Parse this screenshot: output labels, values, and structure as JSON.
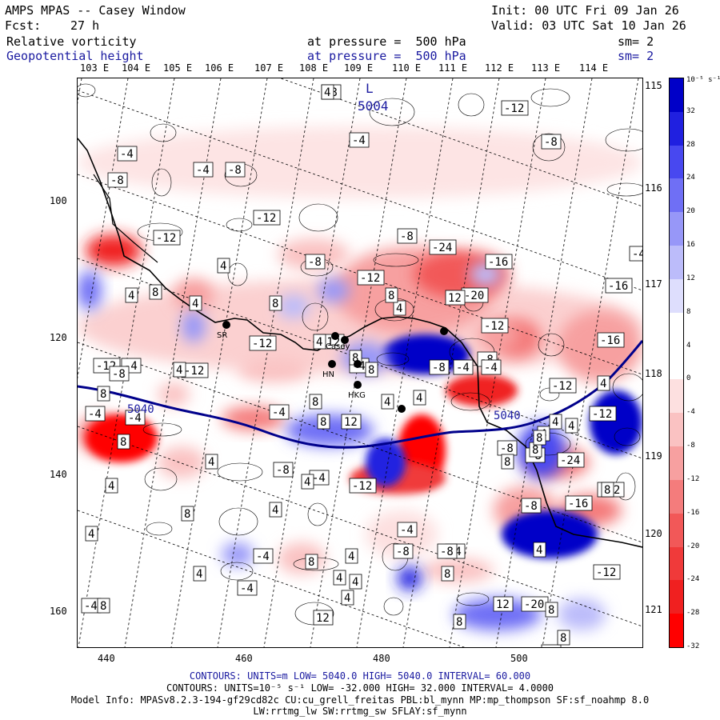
{
  "header": {
    "title": "AMPS MPAS -- Casey Window",
    "init": "Init: 00 UTC Fri 09 Jan 26",
    "fcst_label": "Fcst:",
    "fcst_value": "27 h",
    "valid": "Valid: 03 UTC Sat 10 Jan 26",
    "field1_name": "Relative vorticity",
    "field1_level": "at pressure =  500 hPa",
    "field1_sm": "sm= 2",
    "field2_name": "Geopotential height",
    "field2_level": "at pressure =  500 hPa",
    "field2_sm": "sm= 2"
  },
  "top_lon_labels": [
    "103 E",
    "104 E",
    "105 E",
    "106 E",
    "107 E",
    "108 E",
    "109 E",
    "110 E",
    "111 E",
    "112 E",
    "113 E",
    "114 E"
  ],
  "right_lon_labels": [
    "115 E",
    "116 E",
    "117 E",
    "118 E",
    "119 E",
    "120 E",
    "121 E"
  ],
  "x_ticks": [
    "440",
    "460",
    "480",
    "500"
  ],
  "y_ticks": [
    "100",
    "120",
    "140",
    "160"
  ],
  "colorbar": {
    "unit": "10⁻⁵ s⁻¹",
    "labels": [
      "32",
      "28",
      "24",
      "20",
      "16",
      "12",
      "8",
      "4",
      "0",
      "-4",
      "-8",
      "-12",
      "-16",
      "-20",
      "-24",
      "-28",
      "-32"
    ],
    "colors": [
      "#0000c8",
      "#2020e0",
      "#4848f0",
      "#6f6ff5",
      "#9797f8",
      "#bcbcfa",
      "#dedefd",
      "#ffffff",
      "#ffffff",
      "#fde0e0",
      "#fac2c2",
      "#f7a0a0",
      "#f47c7c",
      "#f25858",
      "#f03a3a",
      "#f02020",
      "#ff0000"
    ]
  },
  "map": {
    "height_contour_label": "5040",
    "low_label": "L",
    "low_value": "5004",
    "stations": [
      "SR",
      "Casey",
      "HN",
      "HKG"
    ],
    "vort_labels": [
      "-8",
      "-12",
      "-4",
      "-8",
      "-4",
      "-4",
      "-8",
      "-8",
      "-12",
      "-12",
      "-8",
      "-24",
      "-16",
      "-4",
      "-8",
      "-12",
      "-16",
      "-20",
      "-12",
      "-12",
      "-16",
      "-12",
      "-4",
      "-12",
      "-4",
      "-12",
      "-8",
      "-4",
      "-8",
      "-4",
      "-4",
      "-12",
      "-8",
      "-4",
      "-12",
      "-24",
      "-4",
      "-8",
      "-16",
      "-20",
      "-8",
      "-4",
      "-8",
      "-12",
      "-4",
      "-4",
      "-8",
      "-12",
      "-4",
      "-8",
      "-4",
      "-8",
      "-4",
      "-12",
      "-8",
      "4",
      "4",
      "8",
      "4",
      "4",
      "8",
      "4",
      "8",
      "8",
      "12",
      "4",
      "8",
      "12",
      "8",
      "4",
      "4",
      "4",
      "8",
      "4",
      "4",
      "4",
      "8",
      "8",
      "4",
      "4",
      "8",
      "8",
      "4",
      "4",
      "8",
      "4",
      "8",
      "12",
      "8",
      "8",
      "12",
      "4",
      "8",
      "4",
      "4",
      "4",
      "8",
      "8",
      "8",
      "8",
      "4",
      "4",
      "4"
    ]
  },
  "footer": {
    "line1": "CONTOURS:  UNITS=m  LOW=  5040.0       HIGH=  5040.0       INTERVAL=  60.000",
    "line2": "CONTOURS:  UNITS=10⁻⁵ s⁻¹  LOW= -32.000        HIGH=  32.000        INTERVAL=  4.0000",
    "line3": "Model Info: MPASv8.2.3-194-gf29cd82c CU:cu_grell_freitas PBL:bl_mynn MP:mp_thompson SF:sf_noahmp 8.0",
    "line4": "LW:rrtmg_lw SW:rrtmg_sw SFLAY:sf_mynn"
  }
}
